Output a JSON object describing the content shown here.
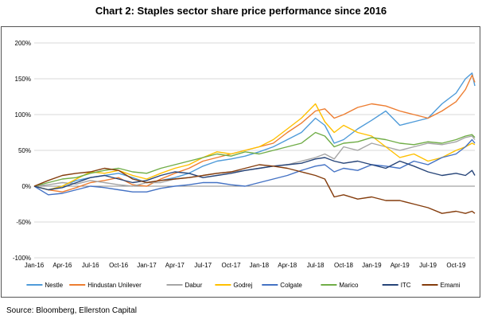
{
  "title": "Chart 2: Staples sector share price performance since 2016",
  "source": "Source: Bloomberg, Ellerston Capital",
  "chart_data": {
    "type": "line",
    "title": "Chart 2: Staples sector share price performance since 2016",
    "xlabel": "",
    "ylabel": "",
    "ylim": [
      -100,
      200
    ],
    "yticks": [
      -100,
      -50,
      0,
      50,
      100,
      150,
      200
    ],
    "ytick_labels": [
      "-100%",
      "-50%",
      "0%",
      "50%",
      "100%",
      "150%",
      "200%"
    ],
    "xticks": [
      0,
      3,
      6,
      9,
      12,
      15,
      18,
      21,
      24,
      27,
      30,
      33,
      36,
      39,
      42,
      45
    ],
    "xtick_labels": [
      "Jan-16",
      "Apr-16",
      "Jul-16",
      "Oct-16",
      "Jan-17",
      "Apr-17",
      "Jul-17",
      "Oct-17",
      "Jan-18",
      "Apr-18",
      "Jul-18",
      "Oct-18",
      "Jan-19",
      "Apr-19",
      "Jul-19",
      "Oct-19"
    ],
    "x_unit": "months since Jan-16",
    "grid": "horizontal",
    "legend": "bottom",
    "series": [
      {
        "name": "Nestle",
        "color": "#4f9bd9",
        "x": [
          0,
          1.5,
          3,
          4.5,
          6,
          7.5,
          9,
          10.5,
          12,
          13.5,
          15,
          16.5,
          18,
          19.5,
          21,
          22.5,
          24,
          25.5,
          27,
          28.5,
          30,
          31,
          32,
          33,
          34.5,
          36,
          37.5,
          39,
          40.5,
          42,
          43.5,
          45,
          46,
          46.7,
          47
        ],
        "values": [
          0,
          -5,
          0,
          8,
          12,
          15,
          18,
          12,
          5,
          8,
          12,
          18,
          28,
          35,
          38,
          42,
          48,
          55,
          65,
          75,
          95,
          85,
          60,
          65,
          80,
          92,
          105,
          85,
          90,
          95,
          115,
          130,
          150,
          158,
          140
        ]
      },
      {
        "name": "Hindustan Unilever",
        "color": "#ed7d31",
        "x": [
          0,
          1.5,
          3,
          4.5,
          6,
          7.5,
          9,
          10.5,
          12,
          13.5,
          15,
          16.5,
          18,
          19.5,
          21,
          22.5,
          24,
          25.5,
          27,
          28.5,
          30,
          31,
          32,
          33,
          34.5,
          36,
          37.5,
          39,
          40.5,
          42,
          43.5,
          45,
          46,
          46.7,
          47
        ],
        "values": [
          0,
          -5,
          -8,
          -2,
          5,
          8,
          12,
          2,
          0,
          10,
          18,
          25,
          35,
          40,
          45,
          50,
          55,
          60,
          75,
          88,
          105,
          108,
          95,
          100,
          110,
          115,
          112,
          105,
          100,
          95,
          105,
          118,
          135,
          155,
          145
        ]
      },
      {
        "name": "Dabur",
        "color": "#a5a5a5",
        "x": [
          0,
          1.5,
          3,
          4.5,
          6,
          7.5,
          9,
          10.5,
          12,
          13.5,
          15,
          16.5,
          18,
          19.5,
          21,
          22.5,
          24,
          25.5,
          27,
          28.5,
          30,
          31,
          32,
          33,
          34.5,
          36,
          37.5,
          39,
          40.5,
          42,
          43.5,
          45,
          46,
          46.7,
          47
        ],
        "values": [
          0,
          2,
          5,
          3,
          8,
          5,
          2,
          0,
          5,
          5,
          10,
          12,
          15,
          18,
          20,
          22,
          25,
          28,
          30,
          35,
          40,
          45,
          38,
          55,
          50,
          60,
          55,
          50,
          55,
          60,
          58,
          62,
          68,
          70,
          65
        ]
      },
      {
        "name": "Godrej",
        "color": "#ffc000",
        "x": [
          0,
          1.5,
          3,
          4.5,
          6,
          7.5,
          9,
          10.5,
          12,
          13.5,
          15,
          16.5,
          18,
          19.5,
          21,
          22.5,
          24,
          25.5,
          27,
          28.5,
          30,
          31,
          32,
          33,
          34.5,
          36,
          37.5,
          39,
          40.5,
          42,
          43.5,
          45,
          46,
          46.7,
          47
        ],
        "values": [
          0,
          -5,
          0,
          10,
          20,
          18,
          22,
          15,
          10,
          18,
          25,
          30,
          40,
          48,
          45,
          50,
          55,
          65,
          80,
          95,
          115,
          90,
          75,
          85,
          75,
          70,
          55,
          40,
          45,
          35,
          40,
          50,
          55,
          60,
          58
        ]
      },
      {
        "name": "Colgate",
        "color": "#4472c4",
        "x": [
          0,
          1.5,
          3,
          4.5,
          6,
          7.5,
          9,
          10.5,
          12,
          13.5,
          15,
          16.5,
          18,
          19.5,
          21,
          22.5,
          24,
          25.5,
          27,
          28.5,
          30,
          31,
          32,
          33,
          34.5,
          36,
          37.5,
          39,
          40.5,
          42,
          43.5,
          45,
          46,
          46.7,
          47
        ],
        "values": [
          0,
          -12,
          -10,
          -5,
          0,
          -2,
          -5,
          -8,
          -8,
          -3,
          0,
          2,
          5,
          5,
          2,
          0,
          5,
          10,
          15,
          22,
          28,
          30,
          20,
          25,
          22,
          30,
          28,
          25,
          35,
          30,
          40,
          45,
          55,
          65,
          60
        ]
      },
      {
        "name": "Marico",
        "color": "#70ad47",
        "x": [
          0,
          1.5,
          3,
          4.5,
          6,
          7.5,
          9,
          10.5,
          12,
          13.5,
          15,
          16.5,
          18,
          19.5,
          21,
          22.5,
          24,
          25.5,
          27,
          28.5,
          30,
          31,
          32,
          33,
          34.5,
          36,
          37.5,
          39,
          40.5,
          42,
          43.5,
          45,
          46,
          46.7,
          47
        ],
        "values": [
          0,
          5,
          10,
          12,
          18,
          22,
          25,
          20,
          18,
          25,
          30,
          35,
          40,
          45,
          42,
          48,
          45,
          50,
          55,
          60,
          75,
          70,
          55,
          60,
          62,
          68,
          65,
          60,
          58,
          62,
          60,
          65,
          70,
          72,
          68
        ]
      },
      {
        "name": "ITC",
        "color": "#264478",
        "x": [
          0,
          1.5,
          3,
          4.5,
          6,
          7.5,
          9,
          10.5,
          12,
          13.5,
          15,
          16.5,
          18,
          19.5,
          21,
          22.5,
          24,
          25.5,
          27,
          28.5,
          30,
          31,
          32,
          33,
          34.5,
          36,
          37.5,
          39,
          40.5,
          42,
          43.5,
          45,
          46,
          46.7,
          47
        ],
        "values": [
          0,
          -5,
          -2,
          5,
          12,
          15,
          10,
          5,
          8,
          15,
          20,
          18,
          12,
          15,
          18,
          22,
          25,
          28,
          30,
          32,
          38,
          40,
          35,
          32,
          35,
          30,
          25,
          35,
          28,
          20,
          15,
          18,
          15,
          22,
          15
        ]
      },
      {
        "name": "Emami",
        "color": "#843c0c",
        "x": [
          0,
          1.5,
          3,
          4.5,
          6,
          7.5,
          9,
          10.5,
          12,
          13.5,
          15,
          16.5,
          18,
          19.5,
          21,
          22.5,
          24,
          25.5,
          27,
          28.5,
          30,
          31,
          32,
          33,
          34.5,
          36,
          37.5,
          39,
          40.5,
          42,
          43.5,
          45,
          46,
          46.7,
          47
        ],
        "values": [
          0,
          8,
          15,
          18,
          20,
          25,
          22,
          10,
          5,
          8,
          10,
          12,
          15,
          18,
          20,
          25,
          30,
          28,
          25,
          20,
          15,
          10,
          -15,
          -12,
          -18,
          -15,
          -20,
          -20,
          -25,
          -30,
          -38,
          -35,
          -38,
          -35,
          -38
        ]
      }
    ]
  }
}
